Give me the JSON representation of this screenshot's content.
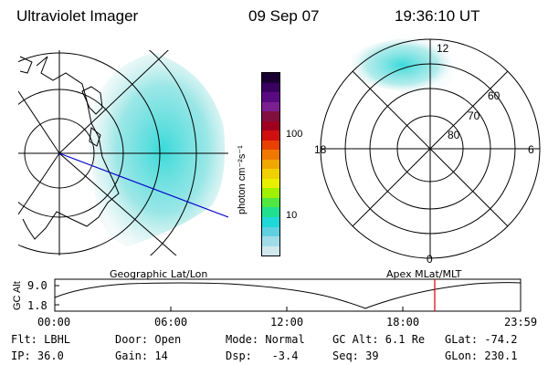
{
  "header": {
    "instrument": "Ultraviolet Imager",
    "date": "09 Sep 07",
    "time": "19:36:10 UT"
  },
  "colorbar": {
    "units": "photon cm⁻²s⁻¹",
    "ticks": [
      "100",
      "10"
    ],
    "colors": [
      "#1a0030",
      "#3a0060",
      "#5a0a80",
      "#7a2090",
      "#801040",
      "#a00020",
      "#d01010",
      "#e84000",
      "#f07800",
      "#f0a800",
      "#f0d000",
      "#e8f000",
      "#a0f000",
      "#50e840",
      "#20e090",
      "#20d8d8",
      "#60d0e0",
      "#a0dce8",
      "#d0e8ee"
    ]
  },
  "left_panel": {
    "label": "Geographic Lat/Lon"
  },
  "right_panel": {
    "label": "Apex  MLat/MLT",
    "lat_labels": [
      "60",
      "70",
      "80"
    ],
    "mlt_labels": [
      "12",
      "18",
      "6",
      "0"
    ]
  },
  "altitude_plot": {
    "ylabel": "GC Alt",
    "yticks": [
      "9.0",
      "1.8"
    ],
    "xticks": [
      "00:00",
      "06:00",
      "12:00",
      "18:00",
      "23:59"
    ],
    "marker_time": "19:36"
  },
  "footer": {
    "row1": [
      "Flt: LBHL",
      "Door: Open",
      "Mode: Normal",
      "GC Alt: 6.1 Re",
      "GLat: -74.2"
    ],
    "row2": [
      "IP: 36.0",
      "Gain: 14",
      "Dsp:   -3.4",
      "Seq: 39",
      "GLon: 230.1"
    ]
  },
  "colors": {
    "aurora": "#30d8d8",
    "track_line": "#0000cc",
    "marker": "#dd0000"
  }
}
